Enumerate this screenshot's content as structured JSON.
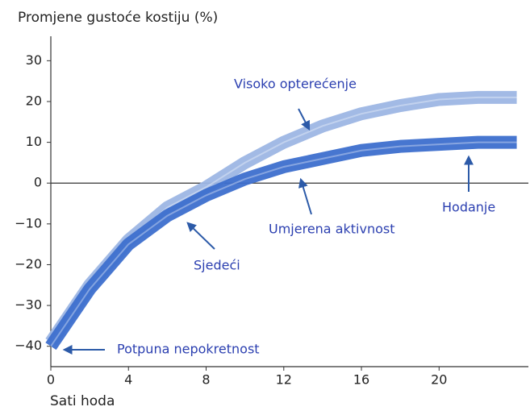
{
  "chart_data": {
    "type": "line",
    "ylabel": "Promjene gustoće kostiju (%)",
    "xlabel": "Sati hoda",
    "x": [
      0,
      2,
      4,
      6,
      8,
      10,
      12,
      14,
      16,
      18,
      20,
      22,
      24
    ],
    "series": [
      {
        "color": "#9db6e4",
        "values": [
          -39,
          -25,
          -14,
          -6,
          -1,
          5,
          10,
          14,
          17,
          19,
          20.5,
          21,
          21
        ]
      },
      {
        "color": "#3d6fce",
        "values": [
          -40,
          -26,
          -15,
          -8,
          -3,
          1,
          4,
          6,
          8,
          9,
          9.5,
          10,
          10
        ]
      }
    ],
    "annotations": [
      "Visoko opterećenje",
      "Hodanje",
      "Umjerena aktivnost",
      "Sjedeći",
      "Potpuna nepokretnost"
    ],
    "xlim": [
      0,
      24.6
    ],
    "ylim": [
      -45,
      36
    ],
    "xticks": [
      0,
      4,
      8,
      12,
      16,
      20
    ],
    "yticks": [
      30,
      20,
      10,
      0,
      {
        "value": -10,
        "label": "−10"
      },
      {
        "value": -20,
        "label": "−20"
      },
      {
        "value": -30,
        "label": "−30"
      },
      {
        "value": -40,
        "label": "−40"
      }
    ]
  }
}
